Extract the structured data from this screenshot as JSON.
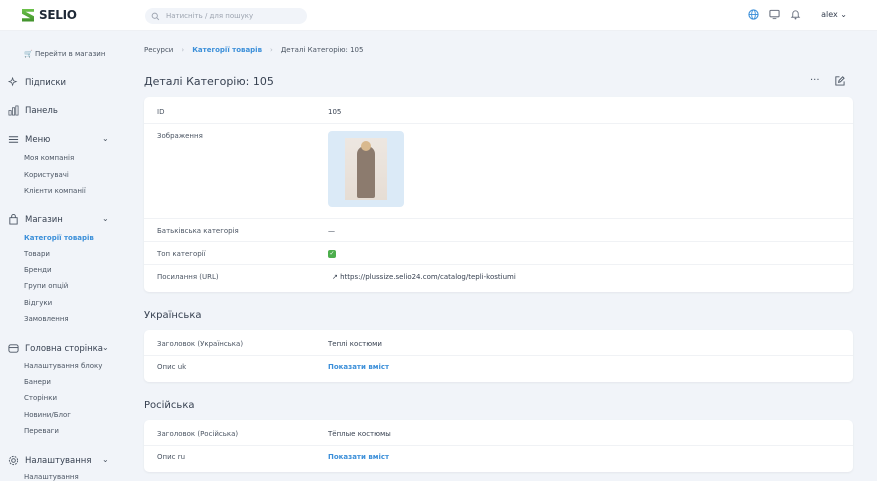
{
  "header": {
    "brand": "SELIO",
    "search_placeholder": "Натисніть / для пошуку",
    "user": "alex",
    "icons": [
      "globe-icon",
      "monitor-icon",
      "bell-icon"
    ]
  },
  "sidebar": {
    "go_to_store": "Перейти в магазин",
    "subscriptions": "Підписки",
    "dashboard": "Панель",
    "menu": {
      "label": "Меню",
      "items": [
        "Моя компанія",
        "Користувачі",
        "Клієнти компанії"
      ]
    },
    "shop": {
      "label": "Магазин",
      "items": [
        "Категорії товарів",
        "Товари",
        "Бренди",
        "Групи опцій",
        "Відгуки",
        "Замовлення"
      ],
      "active": "Категорії товарів"
    },
    "home": {
      "label": "Головна сторінка",
      "items": [
        "Налаштування блоку",
        "Банери",
        "Сторінки",
        "Новини/Блог",
        "Переваги"
      ]
    },
    "settings": {
      "label": "Налаштування",
      "items": [
        "Налаштування"
      ]
    }
  },
  "breadcrumbs": [
    "Ресурси",
    "Категорії товарів",
    "Деталі Категорію: 105"
  ],
  "page_title": "Деталі Категорію: 105",
  "details": {
    "id_label": "ID",
    "id": "105",
    "image_label": "Зображення",
    "parent_label": "Батьківська категорія",
    "parent": "—",
    "top_label": "Топ категорії",
    "top": true,
    "url_label": "Посилання (URL)",
    "url": "https://plussize.selio24.com/catalog/tepli-kostiumi"
  },
  "ukrainian": {
    "section": "Українська",
    "title_label": "Заголовок (Українська)",
    "title": "Теплі костюми",
    "desc_label": "Опис uk",
    "desc_link": "Показати вміст"
  },
  "russian": {
    "section": "Російська",
    "title_label": "Заголовок (Російська)",
    "title": "Тёплые костюмы",
    "desc_label": "Опис ru",
    "desc_link": "Показати вміст"
  },
  "colors": {
    "accent": "#3b8fd9",
    "background": "#f1f4f9",
    "check": "#4cae4c"
  }
}
